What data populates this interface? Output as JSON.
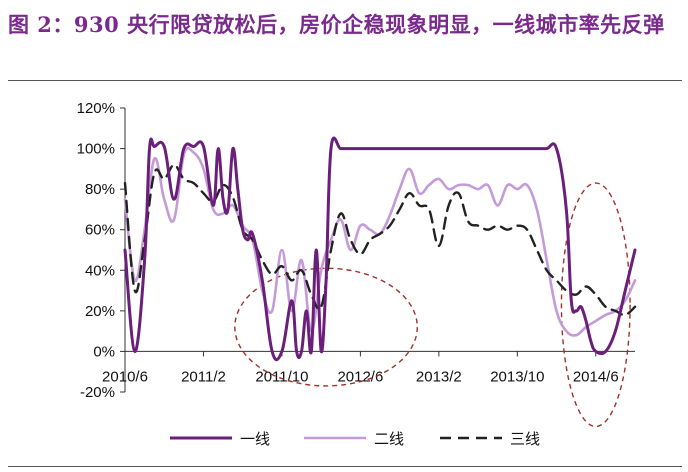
{
  "title": "图 2：930 央行限贷放松后，房价企稳现象明显，一线城市率先反弹",
  "chart_data": {
    "type": "line",
    "title": "图 2：930 央行限贷放松后，房价企稳现象明显，一线城市率先反弹",
    "xlabel": "",
    "ylabel": "",
    "ylim": [
      -20,
      120
    ],
    "y_ticks": [
      "120%",
      "100%",
      "80%",
      "60%",
      "40%",
      "20%",
      "0%",
      "-20%"
    ],
    "y_tick_values": [
      120,
      100,
      80,
      60,
      40,
      20,
      0,
      -20
    ],
    "x_ticks": [
      "2010/6",
      "2011/2",
      "2011/10",
      "2012/6",
      "2013/2",
      "2013/10",
      "2014/6"
    ],
    "x_tick_values": [
      0,
      8,
      16,
      24,
      32,
      40,
      48
    ],
    "x_range": [
      0,
      52
    ],
    "grid": false,
    "legend_position": "bottom",
    "annotations": [
      "dashed-ellipse-2011/10-2012/6",
      "dashed-ellipse-2014/6"
    ],
    "series": [
      {
        "name": "一线",
        "color": "#6b1f7b",
        "style": "solid-thick",
        "x": [
          0,
          1,
          2,
          2.5,
          3,
          4,
          5,
          6,
          7,
          8,
          9,
          9.5,
          10,
          10.5,
          11,
          11.5,
          12,
          12.5,
          13,
          14,
          15,
          16,
          17,
          17.5,
          18,
          18.5,
          19,
          19.5,
          20,
          20.5,
          21,
          22,
          23,
          24,
          25,
          26,
          27,
          28,
          29,
          30,
          31,
          32,
          33,
          34,
          35,
          36,
          37,
          38,
          39,
          40,
          41,
          42,
          43,
          44,
          45,
          45.5,
          46,
          46.5,
          47,
          47.5,
          48,
          49,
          50,
          51,
          52
        ],
        "y": [
          50,
          0,
          45,
          100,
          101,
          101,
          75,
          100,
          101,
          101,
          72,
          100,
          75,
          70,
          100,
          80,
          60,
          55,
          58,
          35,
          0,
          0,
          25,
          0,
          0,
          20,
          0,
          50,
          0,
          35,
          100,
          100,
          100,
          100,
          100,
          100,
          100,
          100,
          100,
          100,
          100,
          100,
          100,
          100,
          100,
          100,
          100,
          100,
          100,
          100,
          100,
          100,
          100,
          100,
          70,
          25,
          20,
          22,
          15,
          5,
          0,
          0,
          10,
          30,
          50
        ]
      },
      {
        "name": "二线",
        "color": "#c49bd8",
        "style": "solid",
        "x": [
          0,
          1,
          2,
          3,
          4,
          5,
          6,
          7,
          8,
          9,
          10,
          11,
          12,
          13,
          14,
          15,
          16,
          17,
          18,
          19,
          20,
          21,
          22,
          23,
          24,
          25,
          26,
          27,
          28,
          29,
          30,
          31,
          32,
          33,
          34,
          35,
          36,
          37,
          38,
          39,
          40,
          41,
          42,
          43,
          44,
          45,
          46,
          47,
          48,
          49,
          50,
          51,
          52
        ],
        "y": [
          75,
          35,
          60,
          95,
          75,
          65,
          97,
          98,
          90,
          70,
          68,
          72,
          62,
          55,
          30,
          20,
          50,
          20,
          45,
          10,
          40,
          55,
          65,
          50,
          62,
          60,
          58,
          67,
          80,
          90,
          78,
          82,
          85,
          80,
          82,
          82,
          80,
          82,
          72,
          82,
          80,
          82,
          70,
          45,
          20,
          10,
          8,
          12,
          15,
          18,
          20,
          25,
          35
        ]
      },
      {
        "name": "三线",
        "color": "#222222",
        "style": "dashed",
        "x": [
          0,
          1,
          2,
          3,
          4,
          5,
          6,
          7,
          8,
          9,
          10,
          11,
          12,
          13,
          14,
          15,
          16,
          17,
          18,
          19,
          20,
          21,
          22,
          23,
          24,
          25,
          26,
          27,
          28,
          29,
          30,
          31,
          32,
          33,
          34,
          35,
          36,
          37,
          38,
          39,
          40,
          41,
          42,
          43,
          44,
          45,
          46,
          47,
          48,
          49,
          50,
          51,
          52
        ],
        "y": [
          83,
          30,
          55,
          88,
          85,
          92,
          85,
          83,
          78,
          74,
          82,
          76,
          60,
          55,
          45,
          38,
          42,
          35,
          40,
          28,
          22,
          50,
          68,
          55,
          48,
          55,
          58,
          62,
          70,
          78,
          72,
          70,
          52,
          72,
          78,
          64,
          62,
          60,
          62,
          60,
          62,
          60,
          50,
          40,
          35,
          30,
          28,
          32,
          28,
          22,
          20,
          18,
          22
        ]
      }
    ]
  }
}
